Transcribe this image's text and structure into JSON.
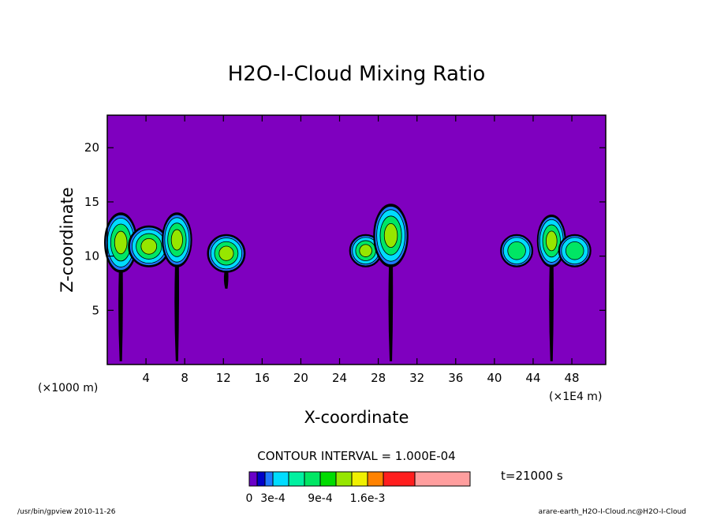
{
  "chart_data": {
    "type": "heatmap",
    "title": "H2O-I-Cloud Mixing Ratio",
    "xlabel": "X-coordinate",
    "ylabel": "Z-coordinate",
    "x_unit_left": "(×1000 m)",
    "x_unit_right": "(×1E4 m)",
    "xlim": [
      0,
      51.5
    ],
    "ylim": [
      0,
      23
    ],
    "x_ticks": [
      4,
      8,
      12,
      16,
      20,
      24,
      28,
      32,
      36,
      40,
      44,
      48
    ],
    "y_ticks": [
      5,
      10,
      15,
      20
    ],
    "background_color": "#7f00bf",
    "contour_interval_text": "CONTOUR INTERVAL = 1.000E-04",
    "time_text": "t=21000 s",
    "colorbar": {
      "colors": [
        "#6a00c8",
        "#0000c8",
        "#1e78ff",
        "#00dcff",
        "#00f0a0",
        "#00e664",
        "#00dc00",
        "#96e600",
        "#f0f000",
        "#ff8200",
        "#ff1e1e",
        "#ff9e9e"
      ],
      "tick_labels": [
        "0",
        "3e-4",
        "9e-4",
        "1.6e-3"
      ]
    },
    "cloud_features": [
      {
        "x": 1.4,
        "z_bottom": 8.5,
        "z_top": 14.0,
        "peak": "medium",
        "tail_to": 0.3
      },
      {
        "x": 4.3,
        "z_bottom": 9.0,
        "z_top": 12.8,
        "peak": "medium",
        "tail_to": 9.0
      },
      {
        "x": 7.2,
        "z_bottom": 9.0,
        "z_top": 14.0,
        "peak": "medium",
        "tail_to": 0.3
      },
      {
        "x": 12.3,
        "z_bottom": 8.5,
        "z_top": 12.0,
        "peak": "medium",
        "tail_to": 7.0
      },
      {
        "x": 26.7,
        "z_bottom": 9.0,
        "z_top": 12.0,
        "peak": "medium",
        "tail_to": 9.0
      },
      {
        "x": 29.3,
        "z_bottom": 9.0,
        "z_top": 14.8,
        "peak": "medium",
        "tail_to": 0.3
      },
      {
        "x": 42.3,
        "z_bottom": 9.0,
        "z_top": 12.0,
        "peak": "low",
        "tail_to": 9.0
      },
      {
        "x": 45.9,
        "z_bottom": 9.0,
        "z_top": 13.8,
        "peak": "medium",
        "tail_to": 0.3
      },
      {
        "x": 48.3,
        "z_bottom": 9.0,
        "z_top": 12.0,
        "peak": "low",
        "tail_to": 9.0
      }
    ]
  },
  "footer": {
    "left": "/usr/bin/gpview 2010-11-26",
    "right": "arare-earth_H2O-I-Cloud.nc@H2O-I-Cloud"
  }
}
